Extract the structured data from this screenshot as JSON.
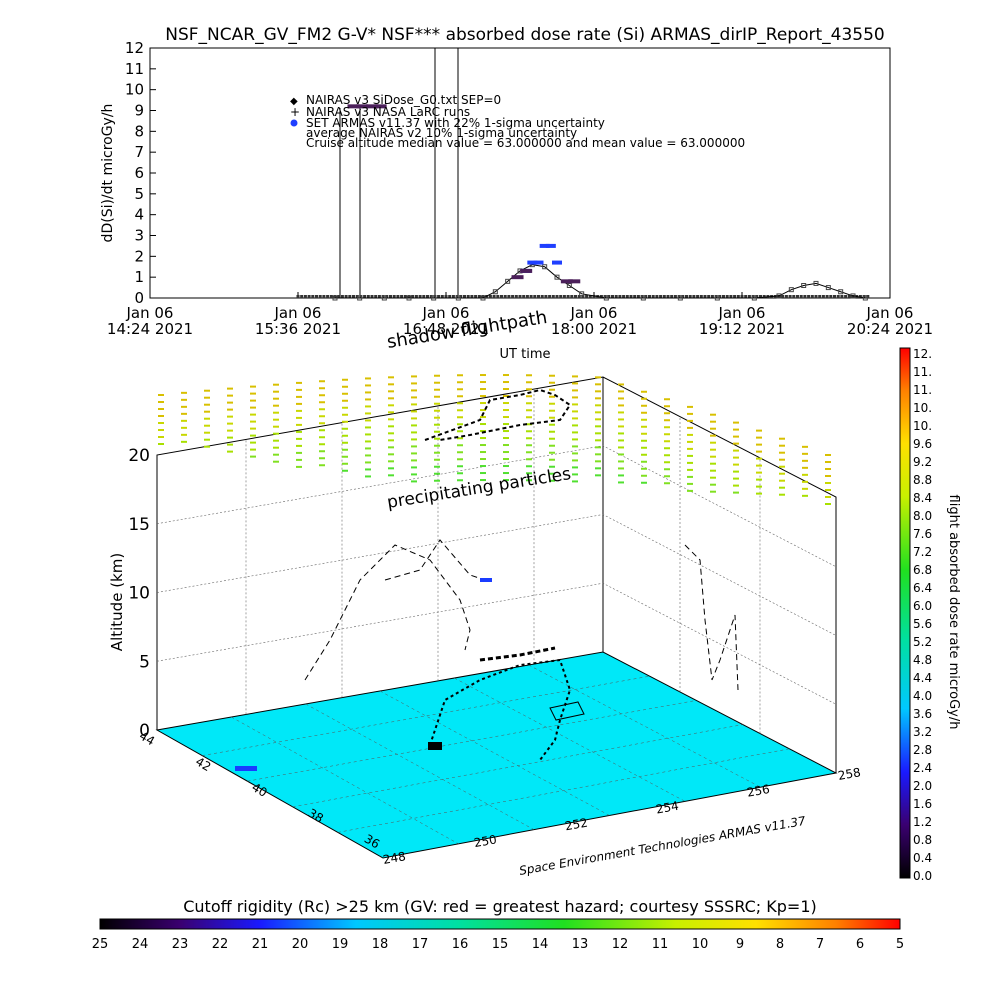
{
  "chart_data": [
    {
      "type": "scatter",
      "title": "NSF_NCAR_GV_FM2 G-V* NSF*** absorbed dose rate (Si) ARMAS_dirIP_Report_43550",
      "xlabel": "UT time",
      "ylabel": "dD(Si)/dt microGy/h",
      "ylim": [
        0,
        12
      ],
      "y_ticks": [
        "0",
        "1",
        "2",
        "3",
        "4",
        "5",
        "6",
        "7",
        "8",
        "9",
        "10",
        "11",
        "12"
      ],
      "x_ticks": [
        {
          "top": "Jan 06",
          "bottom": "14:24 2021"
        },
        {
          "top": "Jan 06",
          "bottom": "15:36 2021"
        },
        {
          "top": "Jan 06",
          "bottom": "16:48 2021"
        },
        {
          "top": "Jan 06",
          "bottom": "18:00 2021"
        },
        {
          "top": "Jan 06",
          "bottom": "19:12 2021"
        },
        {
          "top": "Jan 06",
          "bottom": "20:24 2021"
        }
      ],
      "legend": [
        "NAIRAS v3 SiDose_G0.txt SEP=0",
        "NAIRAS v3 NASA LaRC runs",
        "SET ARMAS v11.37 with 22% 1-sigma uncertainty",
        "average NAIRAS v2 10% 1-sigma uncertainty",
        "Cruise altitude median value = 63.000000 and mean value = 63.000000"
      ],
      "legend_position": "top-left",
      "series": [
        {
          "name": "NAIRAS v3 SiDose_G0.txt SEP=0",
          "color": "#000000",
          "x_hours": [
            15.9,
            16.1,
            16.3,
            16.5,
            16.7,
            16.9,
            17.1,
            17.2,
            17.3,
            17.4,
            17.5,
            17.6,
            17.7,
            17.8,
            17.9,
            18.1,
            18.4,
            18.7,
            19.0,
            19.3,
            19.5,
            19.6,
            19.7,
            19.8,
            19.9,
            20.0,
            20.1,
            20.2
          ],
          "values": [
            0,
            0,
            0,
            0,
            0,
            0,
            0,
            0.3,
            0.8,
            1.3,
            1.6,
            1.5,
            1.0,
            0.6,
            0.2,
            0,
            0,
            0,
            0,
            0,
            0.1,
            0.4,
            0.6,
            0.7,
            0.5,
            0.3,
            0.1,
            0
          ]
        },
        {
          "name": "SET ARMAS v11.37 with 22% 1-sigma uncertainty",
          "color": "#1f3fff",
          "x_hours": [
            17.45,
            17.5,
            17.55,
            17.6,
            17.65,
            17.7
          ],
          "values": [
            1.3,
            1.7,
            1.7,
            2.5,
            2.5,
            1.7
          ]
        },
        {
          "name": "average NAIRAS v2 10% 1-sigma uncertainty",
          "color": "#4b1f5a",
          "x_hours": [
            16.05,
            16.12,
            16.2,
            16.27,
            17.38,
            17.45,
            17.78,
            17.84
          ],
          "values": [
            9.2,
            9.2,
            9.2,
            9.2,
            1.0,
            1.3,
            0.8,
            0.8
          ]
        }
      ],
      "grid": false
    },
    {
      "type": "scatter",
      "title": "",
      "zlabel": "Altitude (km)",
      "z_ticks": [
        "0",
        "5",
        "10",
        "15",
        "20"
      ],
      "lat_ticks": [
        "44",
        "42",
        "40",
        "38",
        "36"
      ],
      "lon_ticks": [
        "248",
        "250",
        "252",
        "254",
        "256",
        "258"
      ],
      "annotations": [
        "shadow flightpath",
        "precipitating particles"
      ],
      "credit": "Space Environment Technologies ARMAS v11.37",
      "colorbar_label": "flight absorbed dose rate microGy/h",
      "colorbar_ticks": [
        "0.0",
        "0.4",
        "0.8",
        "1.2",
        "1.6",
        "2.0",
        "2.4",
        "2.8",
        "3.2",
        "3.6",
        "4.0",
        "4.4",
        "4.8",
        "5.2",
        "5.6",
        "6.0",
        "6.4",
        "6.8",
        "7.2",
        "7.6",
        "8.0",
        "8.4",
        "8.8",
        "9.2",
        "9.6",
        "10.",
        "10.",
        "11.",
        "11.",
        "12."
      ],
      "grid": true
    },
    {
      "type": "heatmap",
      "title": "Cutoff rigidity (Rc) >25 km (GV: red = greatest hazard; courtesy SSSRC; Kp=1)",
      "colorbar_ticks": [
        "25",
        "24",
        "23",
        "22",
        "21",
        "20",
        "19",
        "18",
        "17",
        "16",
        "15",
        "14",
        "13",
        "12",
        "11",
        "10",
        "9",
        "8",
        "7",
        "6",
        "5"
      ]
    }
  ]
}
